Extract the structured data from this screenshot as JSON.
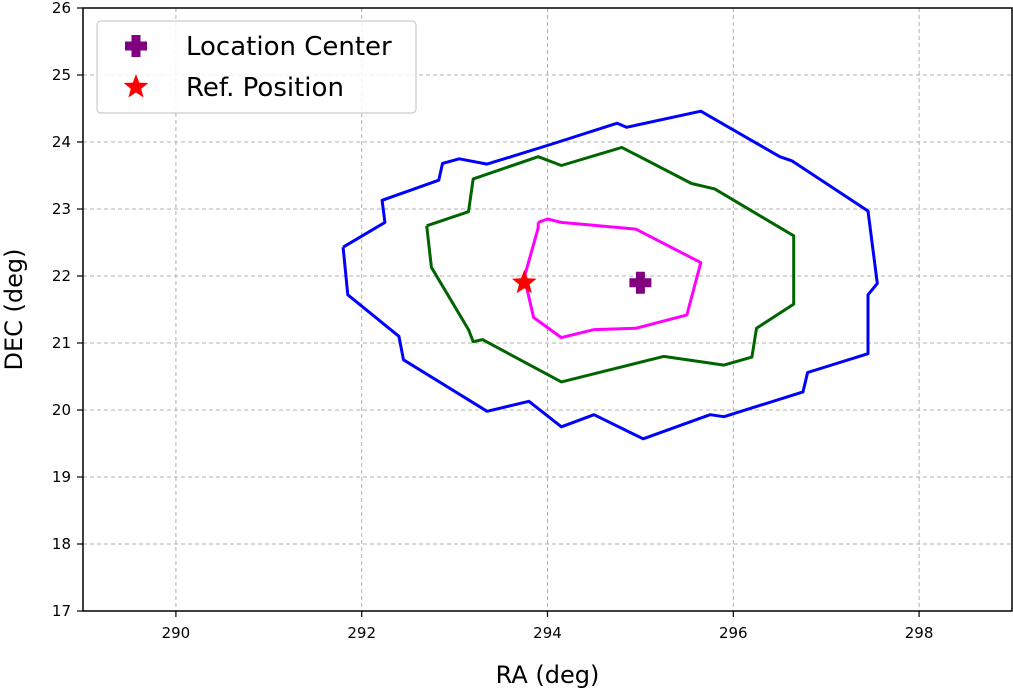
{
  "chart_data": {
    "type": "line",
    "xlabel": "RA (deg)",
    "ylabel": "DEC (deg)",
    "xlim": [
      289,
      299
    ],
    "ylim": [
      17,
      26
    ],
    "xticks": [
      290,
      292,
      294,
      296,
      298
    ],
    "yticks": [
      17,
      18,
      19,
      20,
      21,
      22,
      23,
      24,
      25,
      26
    ],
    "grid": true,
    "legend_placement": "upper-left",
    "contours": [
      {
        "color": "#0000ff",
        "points": [
          [
            291.8,
            22.43
          ],
          [
            292.25,
            22.8
          ],
          [
            292.22,
            23.13
          ],
          [
            292.83,
            23.43
          ],
          [
            292.87,
            23.68
          ],
          [
            293.05,
            23.75
          ],
          [
            293.35,
            23.67
          ],
          [
            294.05,
            23.97
          ],
          [
            294.75,
            24.28
          ],
          [
            294.85,
            24.22
          ],
          [
            295.65,
            24.46
          ],
          [
            296.5,
            23.78
          ],
          [
            296.63,
            23.72
          ],
          [
            297.45,
            22.97
          ],
          [
            297.55,
            21.89
          ],
          [
            297.45,
            21.72
          ],
          [
            297.45,
            20.84
          ],
          [
            296.8,
            20.56
          ],
          [
            296.75,
            20.27
          ],
          [
            295.9,
            19.9
          ],
          [
            295.75,
            19.93
          ],
          [
            295.03,
            19.57
          ],
          [
            294.5,
            19.93
          ],
          [
            294.15,
            19.75
          ],
          [
            293.8,
            20.13
          ],
          [
            293.35,
            19.98
          ],
          [
            292.45,
            20.75
          ],
          [
            292.4,
            21.1
          ],
          [
            291.85,
            21.72
          ],
          [
            291.8,
            22.43
          ]
        ]
      },
      {
        "color": "#006400",
        "points": [
          [
            292.7,
            22.75
          ],
          [
            293.15,
            22.96
          ],
          [
            293.2,
            23.45
          ],
          [
            293.9,
            23.78
          ],
          [
            294.15,
            23.65
          ],
          [
            294.8,
            23.92
          ],
          [
            295.55,
            23.38
          ],
          [
            295.8,
            23.3
          ],
          [
            296.65,
            22.6
          ],
          [
            296.65,
            21.58
          ],
          [
            296.25,
            21.22
          ],
          [
            296.2,
            20.79
          ],
          [
            295.9,
            20.67
          ],
          [
            295.25,
            20.8
          ],
          [
            294.15,
            20.42
          ],
          [
            293.3,
            21.05
          ],
          [
            293.2,
            21.02
          ],
          [
            293.15,
            21.2
          ],
          [
            292.75,
            22.13
          ],
          [
            292.7,
            22.75
          ]
        ]
      },
      {
        "color": "#ff00ff",
        "points": [
          [
            293.9,
            22.8
          ],
          [
            294.0,
            22.85
          ],
          [
            294.15,
            22.8
          ],
          [
            294.95,
            22.7
          ],
          [
            295.65,
            22.2
          ],
          [
            295.5,
            21.42
          ],
          [
            294.95,
            21.22
          ],
          [
            294.5,
            21.2
          ],
          [
            294.15,
            21.08
          ],
          [
            293.85,
            21.38
          ],
          [
            293.75,
            21.98
          ],
          [
            293.9,
            22.72
          ],
          [
            293.9,
            22.8
          ]
        ]
      }
    ],
    "markers": [
      {
        "label": "Location Center",
        "x": 295.0,
        "y": 21.9,
        "marker": "plus",
        "color": "#800080"
      },
      {
        "label": "Ref. Position",
        "x": 293.75,
        "y": 21.9,
        "marker": "star",
        "color": "#ff0000"
      }
    ]
  }
}
